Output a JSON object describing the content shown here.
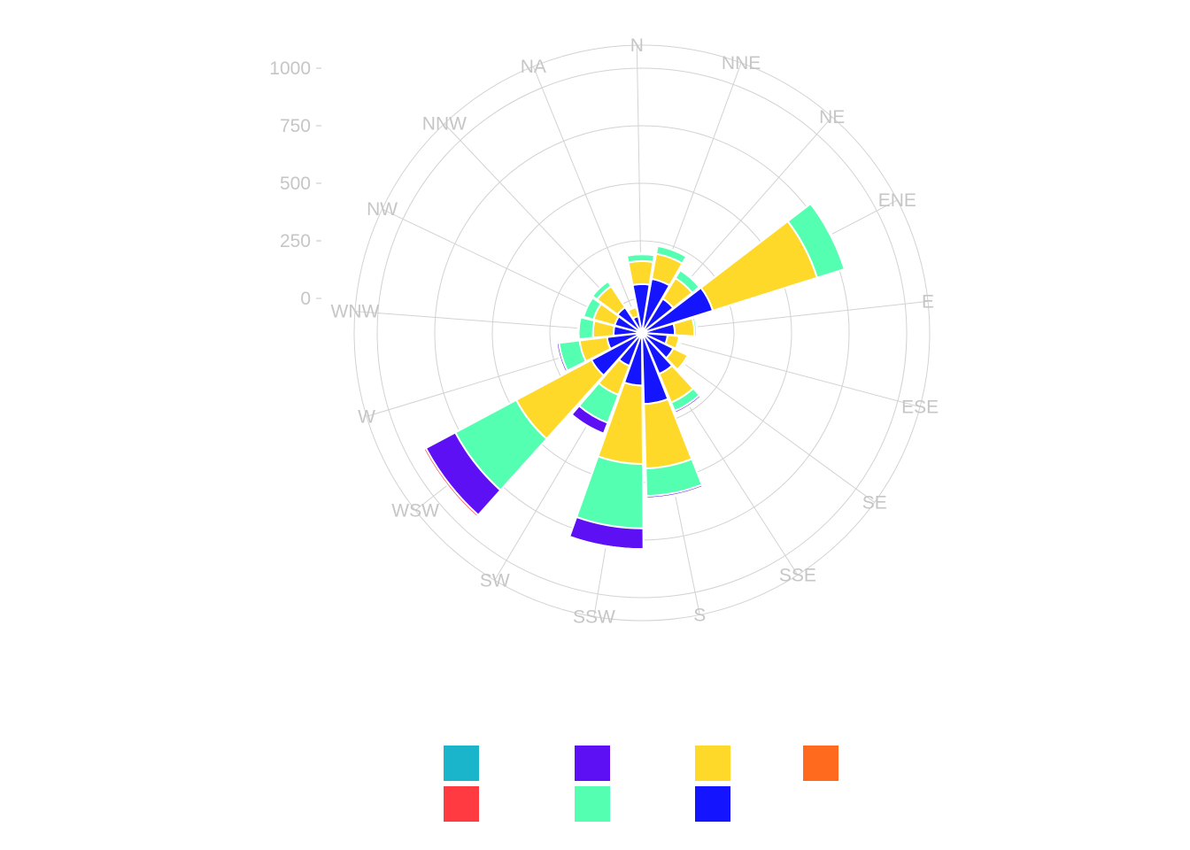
{
  "chart_data": {
    "type": "polar-stacked-bar",
    "title": "",
    "directions": [
      "N",
      "NNE",
      "NE",
      "ENE",
      "E",
      "ESE",
      "SE",
      "SSE",
      "S",
      "SSW",
      "SW",
      "WSW",
      "W",
      "WNW",
      "NW",
      "NNW",
      "NA"
    ],
    "radial_ticks": [
      0,
      250,
      500,
      750,
      1000
    ],
    "radial_tick_labels": [
      "0",
      "250",
      "500",
      "750",
      "1000"
    ],
    "radial_range": [
      -150,
      1100
    ],
    "series": [
      {
        "color": "#f6d935",
        "values": [
          0,
          0,
          0,
          0,
          0,
          0,
          0,
          0,
          0,
          0,
          0,
          0,
          0,
          0,
          0,
          0,
          0
        ]
      },
      {
        "color": "#ff6a1e",
        "values": [
          4,
          4,
          4,
          3,
          3,
          2,
          2,
          3,
          4,
          4,
          3,
          4,
          3,
          3,
          3,
          3,
          4
        ]
      },
      {
        "color": "#1414ff",
        "values": [
          208,
          235,
          170,
          320,
          140,
          110,
          150,
          190,
          305,
          225,
          150,
          245,
          150,
          120,
          120,
          130,
          70
        ]
      },
      {
        "color": "#ffd92a",
        "values": [
          100,
          110,
          105,
          475,
          85,
          50,
          70,
          135,
          280,
          340,
          135,
          370,
          120,
          90,
          95,
          110,
          40
        ]
      },
      {
        "color": "#55ffb2",
        "values": [
          30,
          35,
          40,
          125,
          10,
          8,
          8,
          40,
          120,
          280,
          130,
          300,
          90,
          62,
          45,
          25,
          5
        ]
      },
      {
        "color": "#5d10f3",
        "values": [
          3,
          0,
          4,
          5,
          2,
          3,
          1,
          10,
          10,
          90,
          50,
          145,
          10,
          3,
          0,
          0,
          0
        ]
      },
      {
        "color": "#ff3a40",
        "values": [
          2,
          0,
          2,
          0,
          0,
          0,
          0,
          2,
          3,
          6,
          4,
          10,
          2,
          0,
          0,
          0,
          0
        ]
      }
    ],
    "legend": {
      "placement": "bottom",
      "colors": [
        "#1ab5ca",
        "#ff3a40",
        "#5d10f3",
        "#55ffb2",
        "#ffd92a",
        "#1414ff",
        "#ff6a1e"
      ]
    },
    "grid": true
  }
}
